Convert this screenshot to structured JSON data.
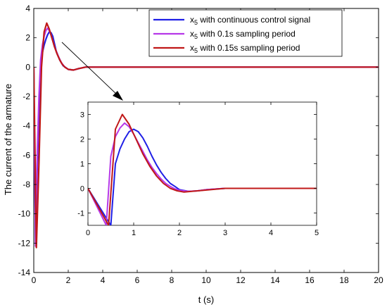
{
  "colors": {
    "series1": "#1f1fe6",
    "series2": "#b638e8",
    "series3": "#c01818"
  },
  "chart_data": [
    {
      "type": "line",
      "xlabel": "t (s)",
      "ylabel": "The current  of  the armature",
      "xlim": [
        0,
        20
      ],
      "ylim": [
        -14,
        4
      ],
      "xticks": [
        "0",
        "2",
        "4",
        "6",
        "8",
        "10",
        "12",
        "14",
        "16",
        "18",
        "20"
      ],
      "yticks": [
        "4",
        "2",
        "0",
        "-2",
        "-4",
        "-6",
        "-8",
        "-10",
        "-12",
        "-14"
      ],
      "legend_position": "top-right",
      "series": [
        {
          "name": "x5 with continuous control signal",
          "label_main": "x",
          "label_sub": "5",
          "label_rest": " with continuous control signal",
          "x": [
            0,
            0.1,
            0.2,
            0.3,
            0.4,
            0.5,
            0.6,
            0.7,
            0.8,
            0.9,
            1.0,
            1.1,
            1.2,
            1.3,
            1.5,
            1.7,
            2.0,
            2.3,
            2.6,
            3.0,
            4,
            6,
            8,
            10,
            12,
            14,
            16,
            18,
            20
          ],
          "y": [
            0,
            -12.0,
            -7.0,
            -3.0,
            0.0,
            1.0,
            1.5,
            1.9,
            2.2,
            2.4,
            2.35,
            2.1,
            1.6,
            1.1,
            0.5,
            0.1,
            -0.15,
            -0.2,
            -0.1,
            0,
            0,
            0,
            0,
            0,
            0,
            0,
            0,
            0,
            0
          ]
        },
        {
          "name": "x5 with 0.1s sampling period",
          "label_main": "x",
          "label_sub": "5",
          "label_rest": " with 0.1s sampling period",
          "x": [
            0,
            0.1,
            0.2,
            0.3,
            0.4,
            0.5,
            0.6,
            0.7,
            0.8,
            0.9,
            1.0,
            1.1,
            1.2,
            1.4,
            1.6,
            1.8,
            2.0,
            2.3,
            2.6,
            3.0,
            4,
            6,
            8,
            10,
            12,
            14,
            16,
            18,
            20
          ],
          "y": [
            0,
            -12.2,
            -6.0,
            -2.0,
            0.5,
            1.5,
            2.1,
            2.5,
            2.65,
            2.5,
            2.2,
            1.8,
            1.4,
            0.8,
            0.3,
            0.0,
            -0.15,
            -0.2,
            -0.1,
            0,
            0,
            0,
            0,
            0,
            0,
            0,
            0,
            0,
            0
          ]
        },
        {
          "name": "x5 with 0.15s sampling period",
          "label_main": "x",
          "label_sub": "5",
          "label_rest": " with 0.15s sampling period",
          "x": [
            0,
            0.15,
            0.3,
            0.45,
            0.6,
            0.75,
            0.9,
            1.05,
            1.2,
            1.35,
            1.5,
            1.65,
            1.8,
            2.0,
            2.3,
            2.6,
            3.0,
            4,
            6,
            8,
            10,
            12,
            14,
            16,
            18,
            20
          ],
          "y": [
            0,
            -12.3,
            -6.5,
            0.0,
            2.4,
            3.0,
            2.6,
            2.0,
            1.4,
            0.9,
            0.5,
            0.2,
            0.0,
            -0.15,
            -0.2,
            -0.1,
            0,
            0,
            0,
            0,
            0,
            0,
            0,
            0,
            0,
            0
          ]
        }
      ]
    },
    {
      "type": "line",
      "role": "inset",
      "xlim": [
        0,
        5
      ],
      "ylim": [
        -1.5,
        3.5
      ],
      "xticks": [
        "0",
        "1",
        "2",
        "3",
        "4",
        "5"
      ],
      "yticks": [
        "3",
        "2",
        "1",
        "0",
        "-1"
      ],
      "series": [
        {
          "x": [
            0,
            0.5,
            0.6,
            0.7,
            0.8,
            0.9,
            1.0,
            1.1,
            1.2,
            1.3,
            1.4,
            1.5,
            1.6,
            1.7,
            1.8,
            1.9,
            2.0,
            2.2,
            2.4,
            2.6,
            3.0,
            3.5,
            4,
            5
          ],
          "y": [
            0,
            -1.5,
            1.0,
            1.6,
            2.0,
            2.3,
            2.4,
            2.3,
            2.05,
            1.7,
            1.3,
            0.95,
            0.65,
            0.4,
            0.2,
            0.08,
            -0.05,
            -0.12,
            -0.1,
            -0.05,
            0,
            0,
            0,
            0
          ]
        },
        {
          "x": [
            0,
            0.4,
            0.5,
            0.6,
            0.7,
            0.8,
            0.9,
            1.0,
            1.1,
            1.2,
            1.3,
            1.4,
            1.5,
            1.6,
            1.7,
            1.8,
            1.9,
            2.0,
            2.2,
            2.4,
            2.6,
            3.0,
            3.5,
            4,
            5
          ],
          "y": [
            0,
            -1.5,
            1.3,
            2.1,
            2.45,
            2.65,
            2.5,
            2.2,
            1.85,
            1.5,
            1.15,
            0.85,
            0.6,
            0.38,
            0.2,
            0.08,
            -0.02,
            -0.08,
            -0.12,
            -0.1,
            -0.05,
            0,
            0,
            0,
            0
          ]
        },
        {
          "x": [
            0,
            0.45,
            0.6,
            0.75,
            0.9,
            1.05,
            1.2,
            1.35,
            1.5,
            1.65,
            1.8,
            1.95,
            2.1,
            2.4,
            2.7,
            3.0,
            3.5,
            4,
            5
          ],
          "y": [
            0,
            -1.5,
            2.4,
            3.0,
            2.6,
            2.0,
            1.4,
            0.9,
            0.5,
            0.2,
            0.0,
            -0.1,
            -0.15,
            -0.1,
            -0.05,
            0,
            0,
            0,
            0
          ]
        }
      ]
    }
  ]
}
